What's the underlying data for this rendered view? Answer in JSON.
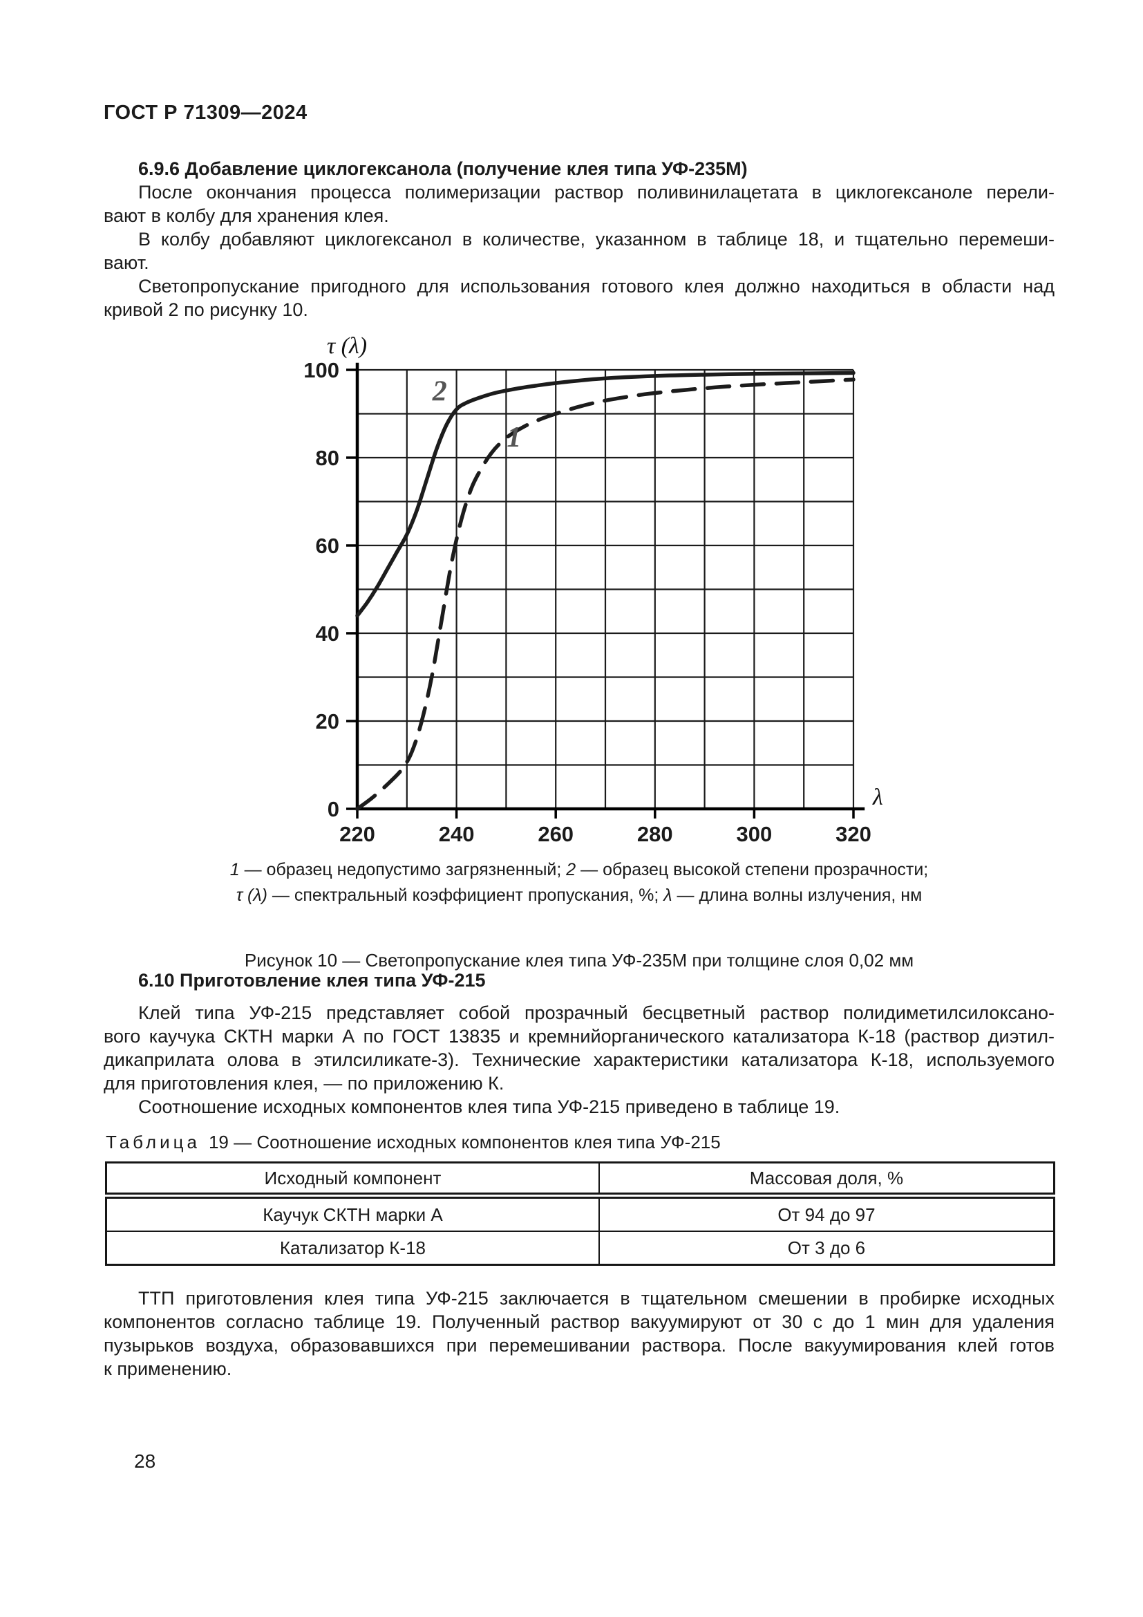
{
  "page": {
    "doc_number": "ГОСТ Р 71309—2024",
    "page_number": "28"
  },
  "section_696": {
    "heading": "6.9.6 Добавление циклогексанола (получение клея типа УФ-235М)",
    "paragraphs": [
      {
        "lines": [
          "После окончания процесса полимеризации раствор поливинилацетата в циклогексаноле перели-",
          "вают в колбу для хранения клея."
        ]
      },
      {
        "lines": [
          "В колбу добавляют циклогексанол в количестве, указанном в таблице 18, и тщательно перемеши-",
          "вают."
        ]
      },
      {
        "lines": [
          "Светопропускание пригодного для использования готового клея должно находиться в области над",
          "кривой 2 по рисунку 10."
        ]
      }
    ]
  },
  "chart_data": {
    "type": "line",
    "title": "Светопропускание клея типа УФ-235М при толщине слоя 0,02 мм",
    "xlabel": "λ",
    "ylabel": "τ (λ)",
    "xlim": [
      220,
      320
    ],
    "ylim": [
      0,
      100
    ],
    "x_ticks": [
      220,
      240,
      260,
      280,
      300,
      320
    ],
    "y_ticks": [
      0,
      20,
      40,
      60,
      80,
      100
    ],
    "grid_step": {
      "x": 10,
      "y": 10
    },
    "grid": true,
    "series": [
      {
        "name": "2",
        "description": "образец высокой степени прозрачности",
        "style": "solid",
        "label_pos": [
          236.6,
          93
        ],
        "points": [
          [
            220,
            44
          ],
          [
            222,
            47
          ],
          [
            224,
            50.5
          ],
          [
            226,
            54.5
          ],
          [
            228,
            58.5
          ],
          [
            230,
            62.5
          ],
          [
            232,
            68
          ],
          [
            234,
            75
          ],
          [
            236,
            82
          ],
          [
            238,
            87.5
          ],
          [
            240,
            91
          ],
          [
            242,
            92.5
          ],
          [
            245,
            93.8
          ],
          [
            248,
            94.8
          ],
          [
            252,
            95.7
          ],
          [
            256,
            96.4
          ],
          [
            260,
            97
          ],
          [
            266,
            97.7
          ],
          [
            272,
            98.2
          ],
          [
            280,
            98.6
          ],
          [
            290,
            98.9
          ],
          [
            300,
            99.1
          ],
          [
            310,
            99.2
          ],
          [
            320,
            99.3
          ]
        ]
      },
      {
        "name": "1",
        "description": "образец недопустимо загрязненный",
        "style": "dashed",
        "label_pos": [
          251.6,
          82.5
        ],
        "points": [
          [
            220,
            0
          ],
          [
            223,
            2.5
          ],
          [
            226,
            5.5
          ],
          [
            229,
            9
          ],
          [
            231,
            13
          ],
          [
            233,
            20
          ],
          [
            235,
            30
          ],
          [
            237,
            43
          ],
          [
            239,
            56
          ],
          [
            241,
            66
          ],
          [
            243,
            73
          ],
          [
            245,
            77.5
          ],
          [
            247,
            81
          ],
          [
            249,
            83.5
          ],
          [
            251,
            85.3
          ],
          [
            254,
            87.3
          ],
          [
            257,
            88.8
          ],
          [
            260,
            90
          ],
          [
            265,
            91.7
          ],
          [
            270,
            93
          ],
          [
            277,
            94.3
          ],
          [
            284,
            95.2
          ],
          [
            292,
            96
          ],
          [
            300,
            96.6
          ],
          [
            310,
            97.2
          ],
          [
            320,
            97.8
          ]
        ]
      }
    ]
  },
  "figure": {
    "legend_line1": [
      {
        "t": "1",
        "i": 1
      },
      {
        "t": " — образец недопустимо загрязненный; ",
        "i": 0
      },
      {
        "t": "2",
        "i": 1
      },
      {
        "t": " — образец высокой степени прозрачности;",
        "i": 0
      }
    ],
    "legend_line2": [
      {
        "t": "τ (λ)",
        "i": 1
      },
      {
        "t": " — спектральный коэффициент пропускания, %; ",
        "i": 0
      },
      {
        "t": "λ",
        "i": 1
      },
      {
        "t": " — длина волны излучения, нм",
        "i": 0
      }
    ],
    "title": "Рисунок 10 — Светопропускание клея типа УФ-235М при толщине слоя 0,02 мм"
  },
  "section_610": {
    "heading": "6.10 Приготовление клея типа УФ-215",
    "paragraphs": [
      {
        "lines": [
          "Клей типа УФ-215 представляет собой прозрачный бесцветный раствор полидиметилсилоксано-",
          "вого каучука СКТН марки А по ГОСТ 13835 и кремнийорганического катализатора К-18 (раствор диэтил-",
          "дикаприлата олова в этилсиликате-3). Технические характеристики катализатора К-18, используемого",
          "для приготовления клея, — по приложению К."
        ]
      },
      {
        "lines": [
          "Соотношение исходных компонентов клея типа УФ-215 приведено в таблице 19."
        ]
      }
    ]
  },
  "table19": {
    "label_prefix": "Таблица",
    "label_rest": "19 — Соотношение исходных компонентов клея типа УФ-215",
    "headers": [
      "Исходный компонент",
      "Массовая доля, %"
    ],
    "rows": [
      [
        "Каучук СКТН марки А",
        "От 94 до 97"
      ],
      [
        "Катализатор К-18",
        "От 3 до 6"
      ]
    ]
  },
  "closing_paragraph": {
    "lines": [
      "ТТП приготовления клея типа УФ-215 заключается в тщательном смешении в пробирке исходных",
      "компонентов согласно таблице 19. Полученный раствор вакуумируют от 30 с до 1 мин для удаления",
      "пузырьков воздуха, образовавшихся при перемешивании раствора. После вакуумирования клей готов",
      "к применению."
    ]
  }
}
